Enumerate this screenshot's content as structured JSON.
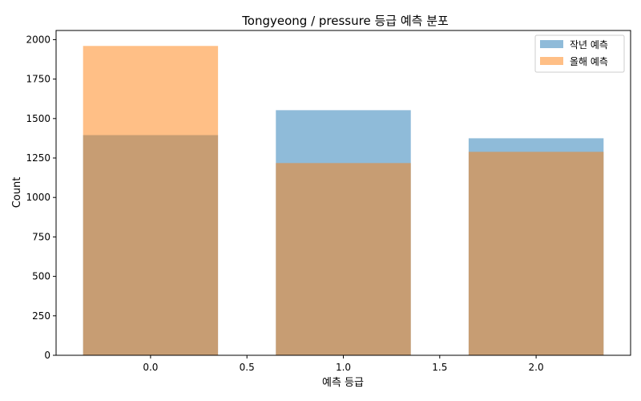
{
  "chart_data": {
    "type": "bar",
    "title": "Tongyeong / pressure 등급 예측 분포",
    "xlabel": "예측 등급",
    "ylabel": "Count",
    "categories": [
      0,
      1,
      2
    ],
    "bar_width": 0.7,
    "xlim": [
      -0.49,
      2.49
    ],
    "ylim": [
      0,
      2058
    ],
    "xticks": [
      0.0,
      0.5,
      1.0,
      1.5,
      2.0
    ],
    "xtick_labels": [
      "0.0",
      "0.5",
      "1.0",
      "1.5",
      "2.0"
    ],
    "yticks": [
      0,
      250,
      500,
      750,
      1000,
      1250,
      1500,
      1750,
      2000
    ],
    "ytick_labels": [
      "0",
      "250",
      "500",
      "750",
      "1000",
      "1250",
      "1500",
      "1750",
      "2000"
    ],
    "grid": false,
    "legend_position": "top-right",
    "series": [
      {
        "name": "작년 예측",
        "values": [
          1395,
          1553,
          1375
        ],
        "color": "#1f77b4",
        "opacity": 0.5
      },
      {
        "name": "올해 예측",
        "values": [
          1960,
          1218,
          1289
        ],
        "color": "#ff7f0e",
        "opacity": 0.5
      }
    ]
  }
}
